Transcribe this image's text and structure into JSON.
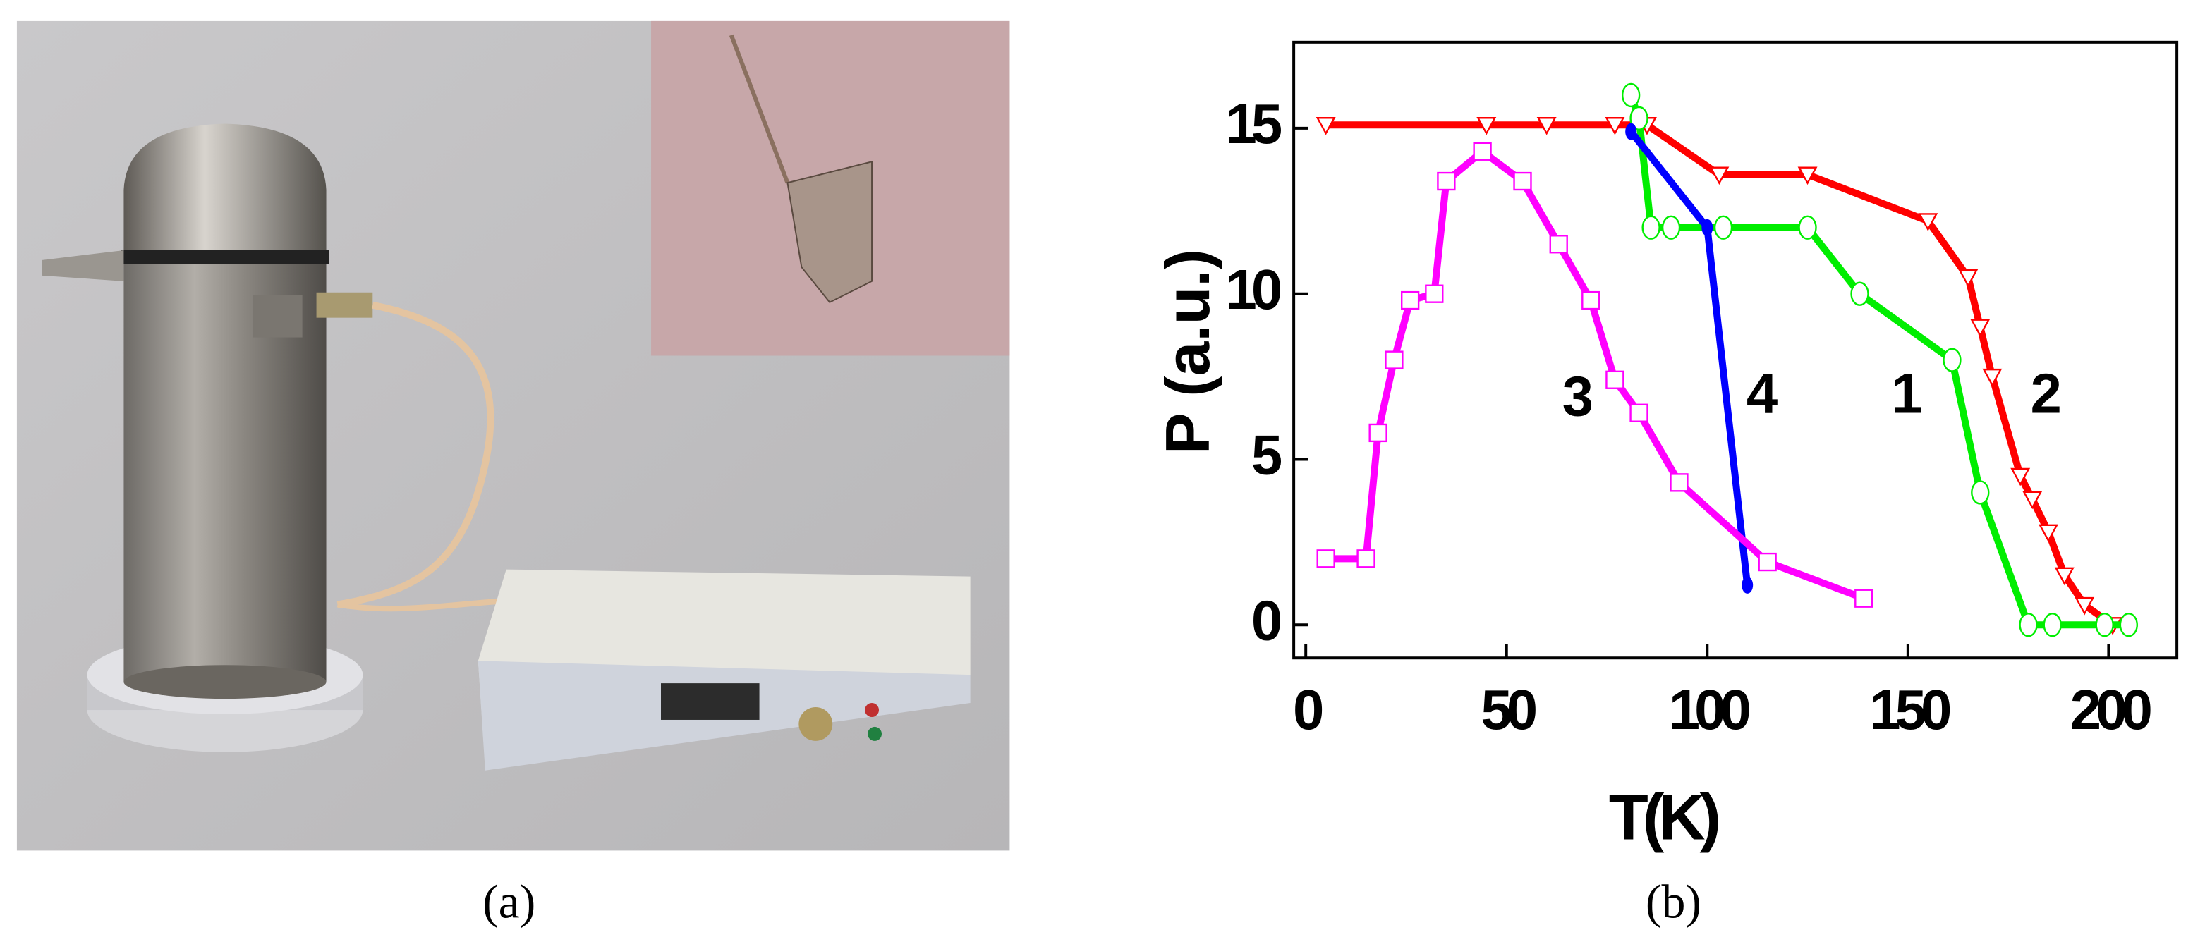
{
  "panels": [
    {
      "label": "(a)"
    },
    {
      "label": "(b)"
    }
  ],
  "chart_data": {
    "type": "line",
    "xlabel": "T(K)",
    "ylabel": "P (a.u.)",
    "xlim": [
      -3,
      217
    ],
    "ylim": [
      -1,
      17.6
    ],
    "xticks": [
      0,
      50,
      100,
      150,
      200
    ],
    "yticks": [
      0,
      5,
      10,
      15
    ],
    "series": [
      {
        "name": "2",
        "color": "#ff0000",
        "marker": "triangle",
        "x": [
          5,
          45,
          60,
          77,
          85,
          103,
          125,
          155,
          165,
          168,
          171,
          178,
          181,
          185,
          189,
          194,
          201
        ],
        "values": [
          15.1,
          15.1,
          15.1,
          15.1,
          15.1,
          13.6,
          13.6,
          12.2,
          10.5,
          9,
          7.5,
          4.5,
          3.8,
          2.8,
          1.5,
          0.6,
          0
        ]
      },
      {
        "name": "1",
        "color": "#00ee00",
        "marker": "circle",
        "x": [
          81,
          83,
          86,
          91,
          104,
          125,
          138,
          161,
          168,
          180,
          186,
          199,
          205
        ],
        "values": [
          16,
          15.3,
          12,
          12,
          12,
          12,
          10,
          8,
          4,
          0,
          0,
          0,
          0
        ]
      },
      {
        "name": "4",
        "color": "#0000ff",
        "marker": "dot",
        "x": [
          81,
          100,
          110
        ],
        "values": [
          14.9,
          12,
          1.2
        ]
      },
      {
        "name": "3",
        "color": "#ff00ff",
        "marker": "square",
        "x": [
          5,
          15,
          18,
          22,
          26,
          32,
          35,
          44,
          54,
          63,
          71,
          77,
          83,
          93,
          115,
          139
        ],
        "values": [
          2,
          2,
          5.8,
          8,
          9.8,
          10,
          13.4,
          14.3,
          13.4,
          11.5,
          9.8,
          7.4,
          6.4,
          4.3,
          1.9,
          0.8
        ]
      }
    ]
  }
}
